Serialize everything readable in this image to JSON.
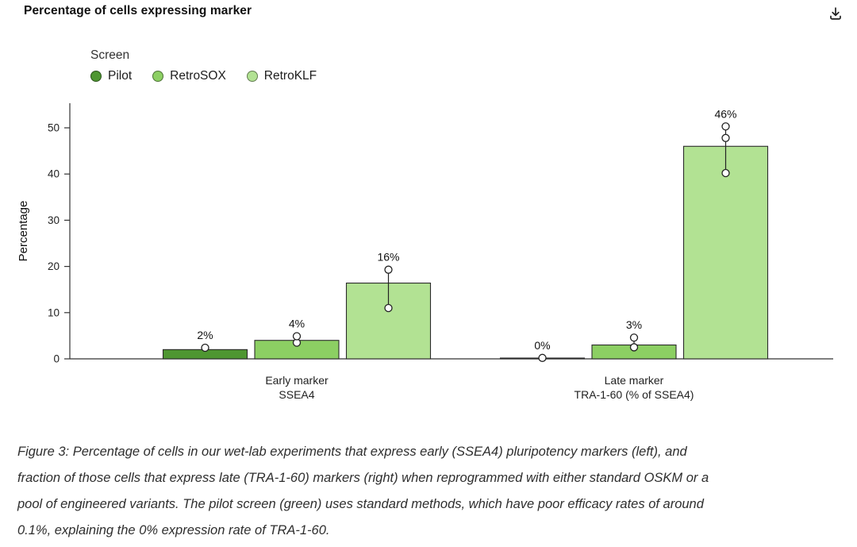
{
  "header": {
    "title": "Percentage of cells expressing marker"
  },
  "toolbar": {
    "download_icon": "download-icon"
  },
  "legend": {
    "title": "Screen",
    "items": [
      {
        "label": "Pilot",
        "color": "#4e9631"
      },
      {
        "label": "RetroSOX",
        "color": "#8ccf63"
      },
      {
        "label": "RetroKLF",
        "color": "#b2e293"
      }
    ]
  },
  "chart_data": {
    "type": "bar",
    "title": "Percentage of cells expressing marker",
    "xlabel": "",
    "ylabel": "Percentage",
    "ylim": [
      0,
      52
    ],
    "yticks": [
      0,
      10,
      20,
      30,
      40,
      50
    ],
    "grid": false,
    "legend_position": "top-left",
    "legend_title": "Screen",
    "categories": [
      [
        "Early marker",
        "SSEA4"
      ],
      [
        "Late marker",
        "TRA-1-60 (% of SSEA4)"
      ]
    ],
    "series": [
      {
        "name": "Pilot",
        "color": "#4e9631",
        "values": [
          2,
          0.1
        ],
        "labels": [
          "2%",
          "0%"
        ],
        "points": [
          [
            2.4
          ],
          [
            0.2
          ]
        ]
      },
      {
        "name": "RetroSOX",
        "color": "#8ccf63",
        "values": [
          4,
          3
        ],
        "labels": [
          "4%",
          "3%"
        ],
        "points": [
          [
            3.5,
            4.9
          ],
          [
            2.5,
            4.6
          ]
        ]
      },
      {
        "name": "RetroKLF",
        "color": "#b2e293",
        "values": [
          16.4,
          46
        ],
        "labels": [
          "16%",
          "46%"
        ],
        "points": [
          [
            11,
            19.3
          ],
          [
            40.2,
            47.8,
            50.3
          ]
        ]
      }
    ]
  },
  "caption": {
    "lines": [
      "Figure 3: Percentage of cells in our wet-lab experiments that express early (SSEA4) pluripotency markers (left), and",
      "fraction of those cells that express late (TRA-1-60) markers (right) when reprogrammed with either standard OSKM or a",
      "pool of engineered variants. The pilot screen (green) uses standard methods, which have poor efficacy rates of around",
      "0.1%, explaining the 0% expression rate of TRA-1-60."
    ]
  }
}
